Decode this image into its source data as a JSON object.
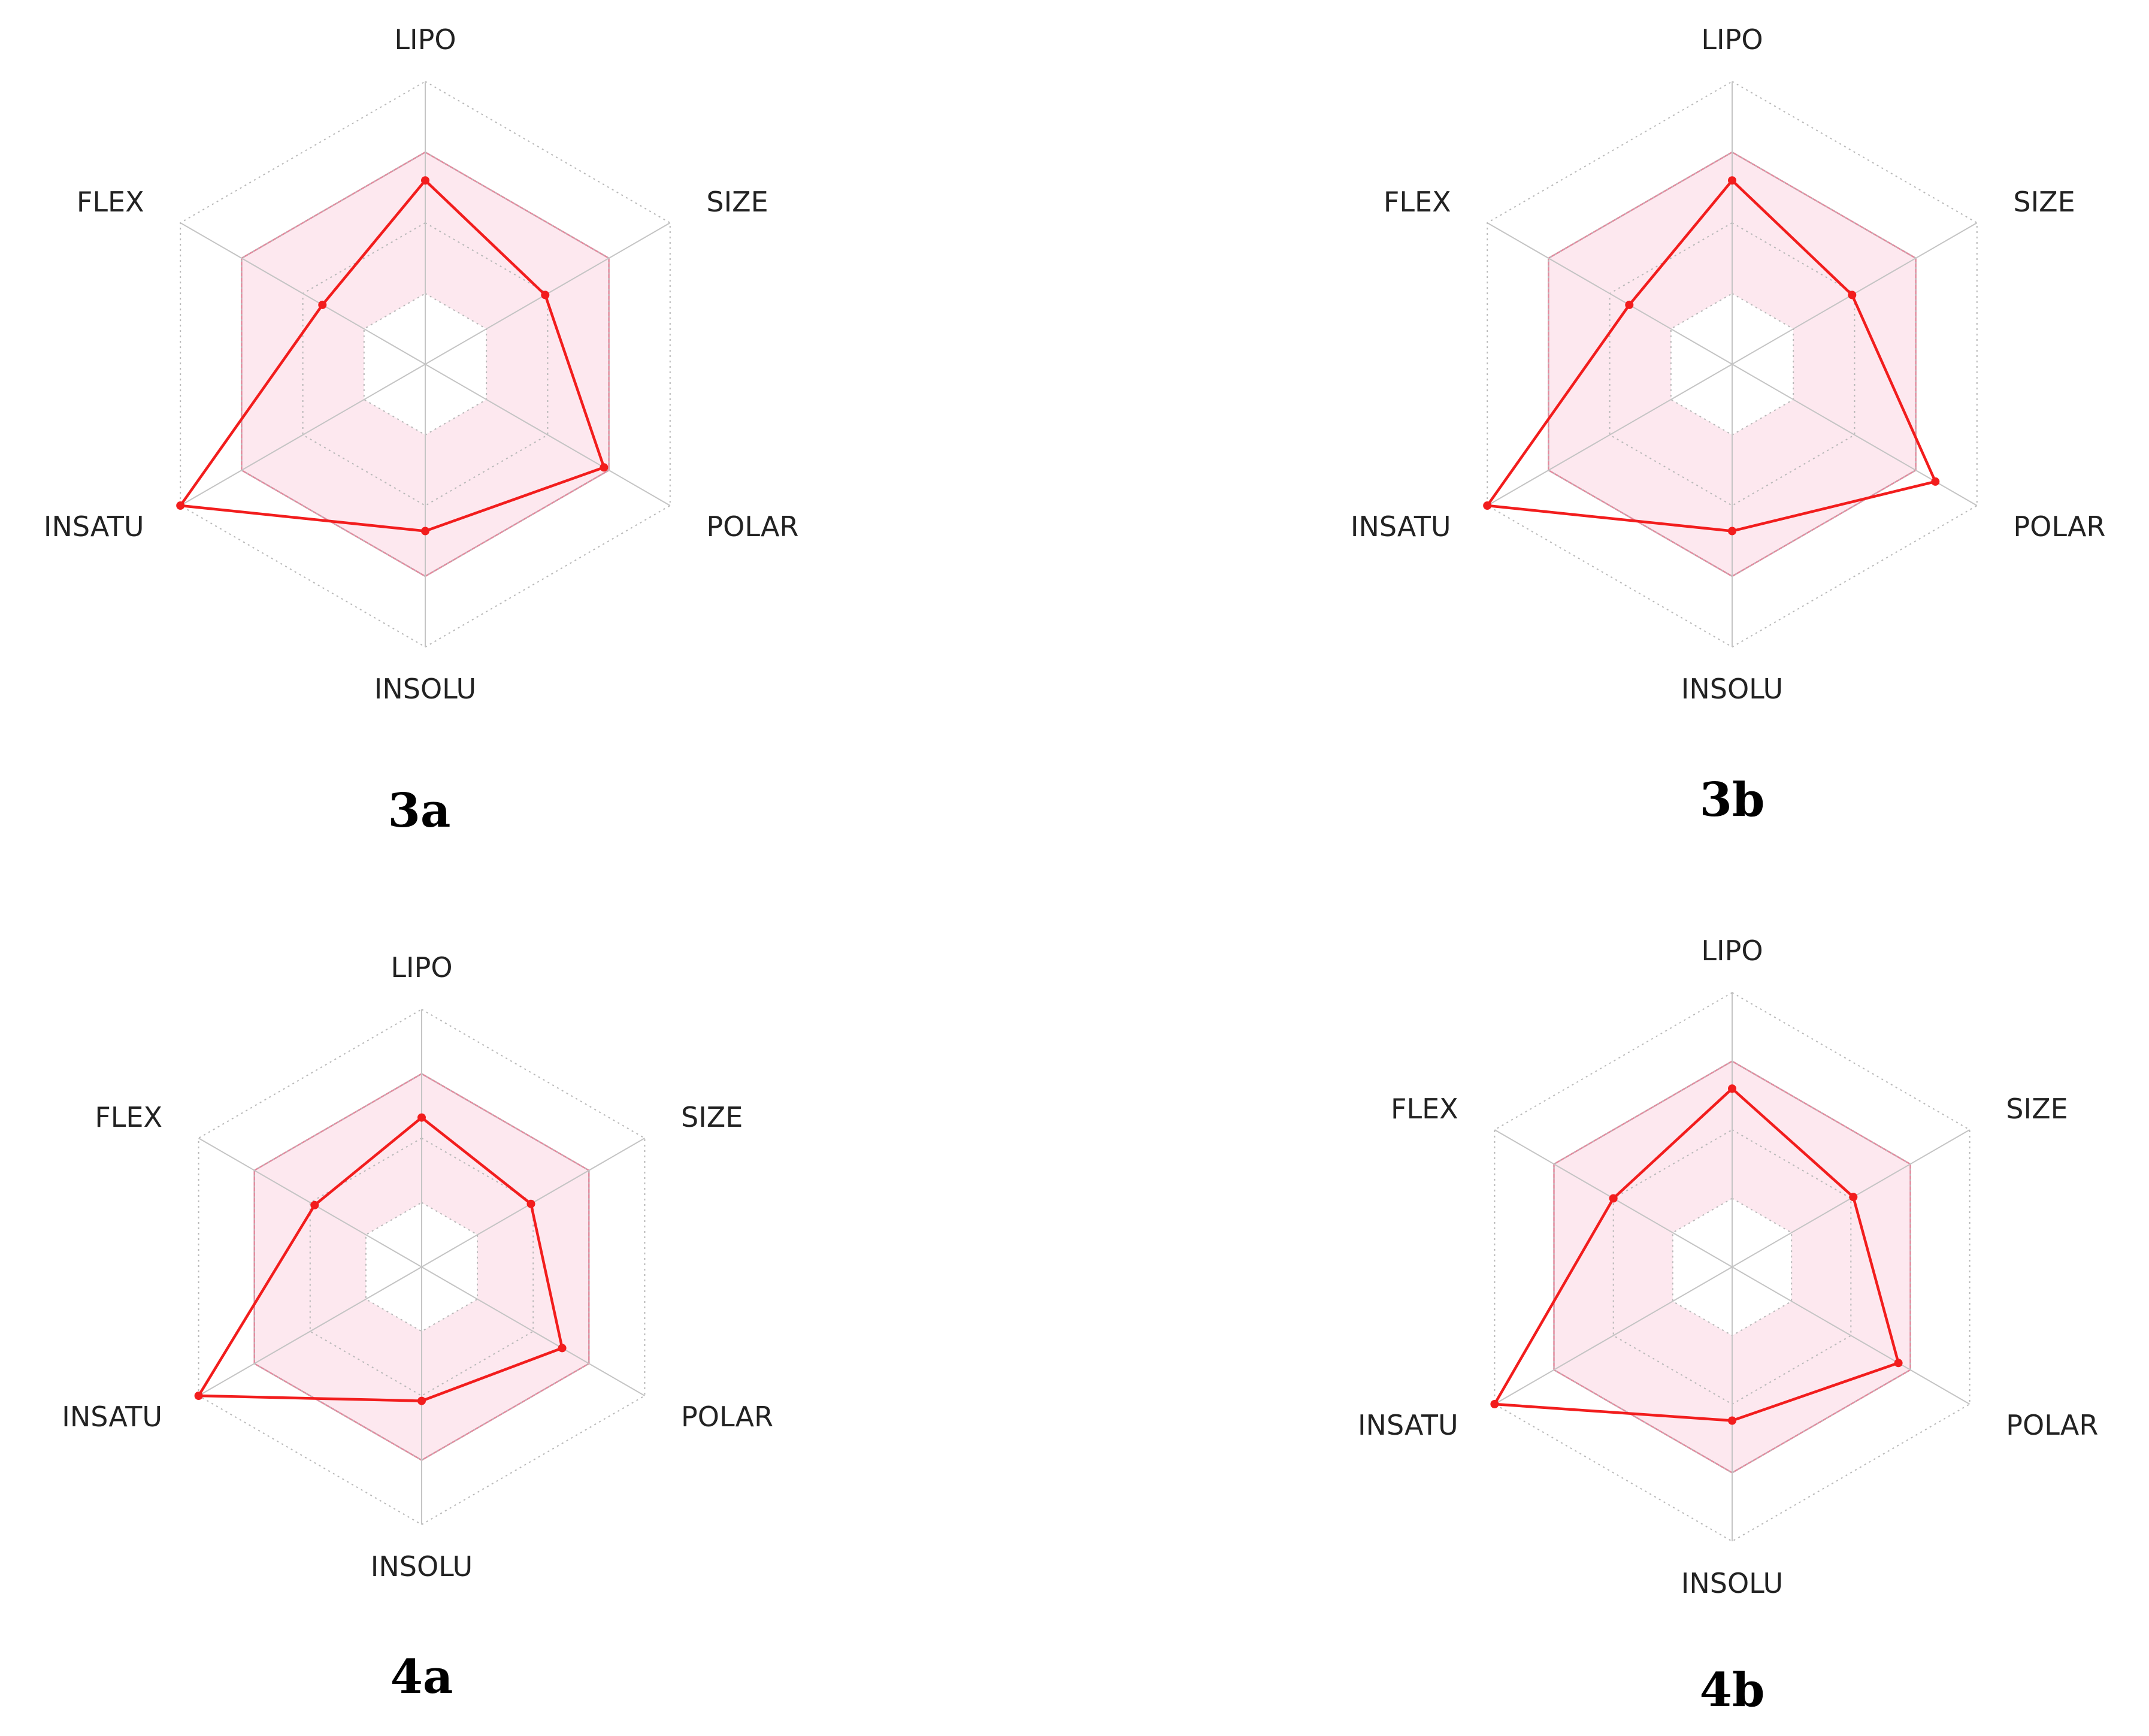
{
  "colors": {
    "optimal_fill": "#fde8ef",
    "optimal_stroke": "#e28a9e",
    "compound_line": "#f21d1d",
    "grid_dotted": "#b8b8b8",
    "spoke": "#c4c4c4"
  },
  "chart_data": [
    {
      "type": "radar",
      "panel_label": "3a",
      "axes": [
        "LIPO",
        "SIZE",
        "POLAR",
        "INSOLU",
        "INSATU",
        "FLEX"
      ],
      "rings": 4,
      "optimal_range": {
        "inner": [
          0.25,
          0.25,
          0.25,
          0.25,
          0.25,
          0.25
        ],
        "outer": [
          0.75,
          0.75,
          0.75,
          0.75,
          0.75,
          0.75
        ]
      },
      "values": [
        0.65,
        0.49,
        0.73,
        0.59,
        1.0,
        0.42
      ]
    },
    {
      "type": "radar",
      "panel_label": "3b",
      "axes": [
        "LIPO",
        "SIZE",
        "POLAR",
        "INSOLU",
        "INSATU",
        "FLEX"
      ],
      "rings": 4,
      "optimal_range": {
        "inner": [
          0.25,
          0.25,
          0.25,
          0.25,
          0.25,
          0.25
        ],
        "outer": [
          0.75,
          0.75,
          0.75,
          0.75,
          0.75,
          0.75
        ]
      },
      "values": [
        0.65,
        0.49,
        0.83,
        0.59,
        1.0,
        0.42
      ]
    },
    {
      "type": "radar",
      "panel_label": "4a",
      "axes": [
        "LIPO",
        "SIZE",
        "POLAR",
        "INSOLU",
        "INSATU",
        "FLEX"
      ],
      "rings": 4,
      "optimal_range": {
        "inner": [
          0.25,
          0.25,
          0.25,
          0.25,
          0.25,
          0.25
        ],
        "outer": [
          0.75,
          0.75,
          0.75,
          0.75,
          0.75,
          0.75
        ]
      },
      "values": [
        0.58,
        0.49,
        0.63,
        0.52,
        1.0,
        0.48
      ]
    },
    {
      "type": "radar",
      "panel_label": "4b",
      "axes": [
        "LIPO",
        "SIZE",
        "POLAR",
        "INSOLU",
        "INSATU",
        "FLEX"
      ],
      "rings": 4,
      "optimal_range": {
        "inner": [
          0.25,
          0.25,
          0.25,
          0.25,
          0.25,
          0.25
        ],
        "outer": [
          0.75,
          0.75,
          0.75,
          0.75,
          0.75,
          0.75
        ]
      },
      "values": [
        0.65,
        0.51,
        0.7,
        0.56,
        1.0,
        0.5
      ]
    }
  ]
}
